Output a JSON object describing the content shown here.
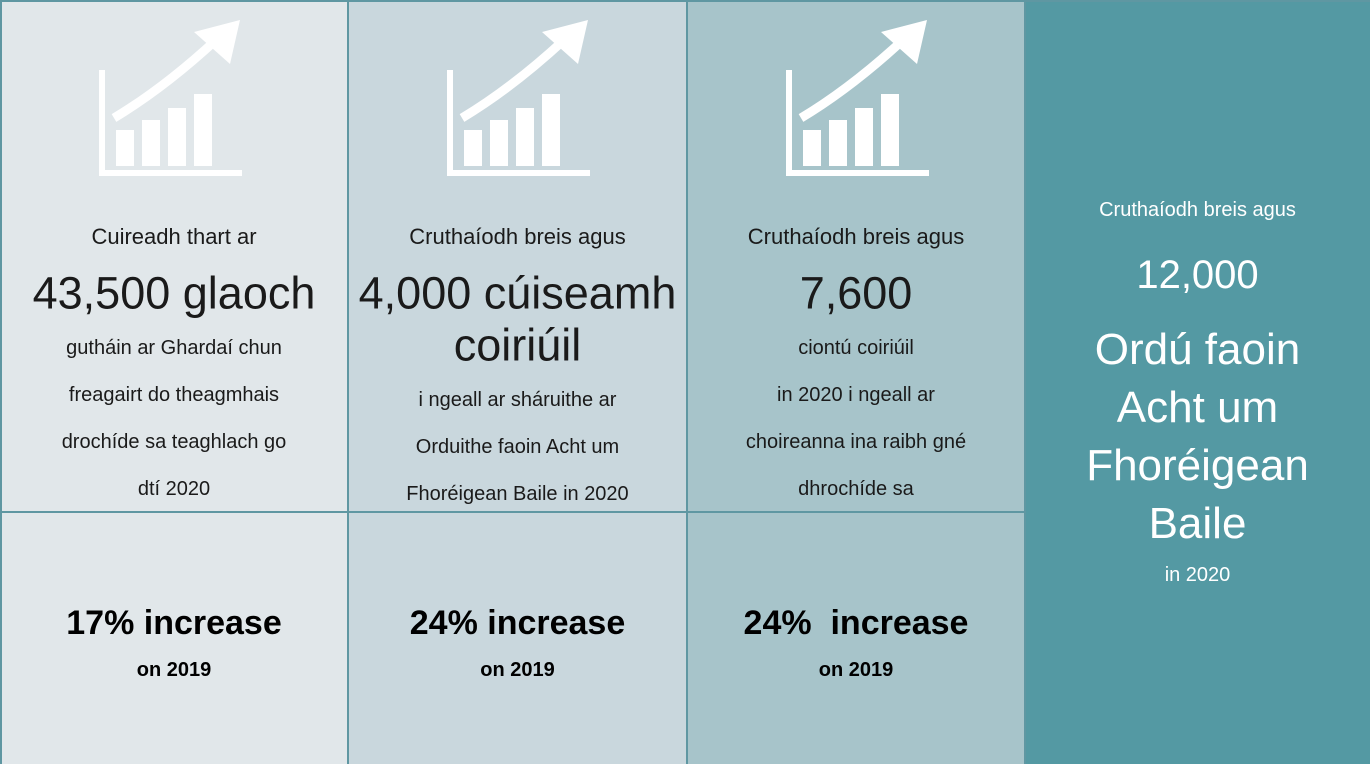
{
  "panels": [
    {
      "intro": "Cuireadh thart ar",
      "headline": [
        "43,500 glaoch"
      ],
      "details": [
        "gutháin ar Ghardaí chun",
        "freagairt do theagmhais",
        "drochíde sa teaghlach go",
        "dtí 2020"
      ],
      "increase": "17% increase",
      "baseline": "on 2019"
    },
    {
      "intro": "Cruthaíodh breis agus",
      "headline": [
        "4,000 cúiseamh",
        "coiriúil"
      ],
      "details": [
        "i ngeall ar sháruithe ar",
        "Orduithe faoin Acht um",
        "Fhoréigean Baile in 2020"
      ],
      "increase": "24% increase",
      "baseline": "on 2019"
    },
    {
      "intro": "Cruthaíodh breis agus",
      "headline": [
        "7,600"
      ],
      "details": [
        "ciontú coiriúil",
        "in 2020 i ngeall ar",
        "choireanna ina raibh gné",
        "dhrochíde sa"
      ],
      "increase": "24%  increase",
      "baseline": "on 2019"
    }
  ],
  "highlight": {
    "intro": "Cruthaíodh breis agus",
    "figure": "12,000",
    "headline": [
      "Ordú faoin",
      "Acht um",
      "Fhoréigean",
      "Baile"
    ],
    "note": "in 2020"
  }
}
